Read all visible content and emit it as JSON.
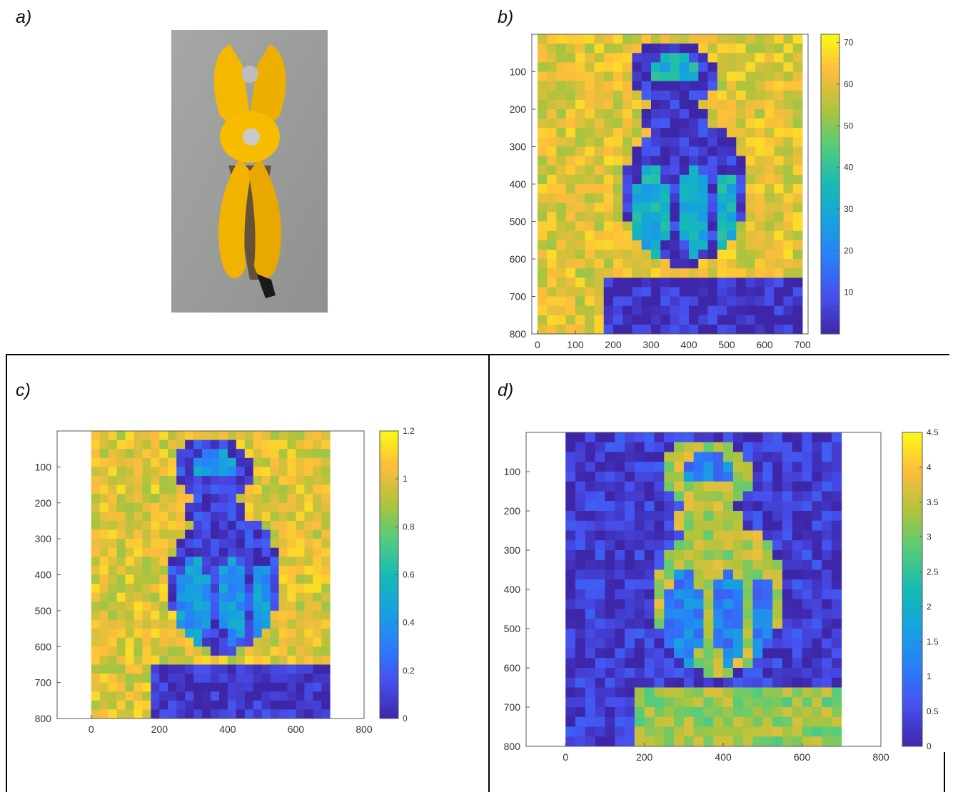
{
  "figure": {
    "panels": [
      {
        "id": "a",
        "label": "a)"
      },
      {
        "id": "b",
        "label": "b)"
      },
      {
        "id": "c",
        "label": "c)"
      },
      {
        "id": "d",
        "label": "d)"
      }
    ],
    "photo_icon": "yellow-pliers-photo"
  },
  "chart_data": [
    {
      "panel": "b",
      "type": "heatmap",
      "title": "",
      "xlabel": "",
      "ylabel": "",
      "xlim": [
        -15,
        715
      ],
      "ylim": [
        800,
        0
      ],
      "xticks": [
        0,
        100,
        200,
        300,
        400,
        500,
        600,
        700
      ],
      "xtick_labels": [
        "0",
        "100",
        "200",
        "300",
        "400",
        "500",
        "600",
        "700"
      ],
      "yticks": [
        100,
        200,
        300,
        400,
        500,
        600,
        700,
        800
      ],
      "ytick_labels": [
        "100",
        "200",
        "300",
        "400",
        "500",
        "600",
        "700",
        "800"
      ],
      "data_extent": {
        "x": [
          0,
          700
        ],
        "y": [
          0,
          800
        ]
      },
      "colorbar": {
        "min": 0,
        "max": 72,
        "ticks": [
          10,
          20,
          30,
          40,
          50,
          60,
          70
        ],
        "tick_labels": [
          "10",
          "20",
          "30",
          "40",
          "50",
          "60",
          "70"
        ]
      },
      "colormap": "parula",
      "pattern": {
        "background": 60,
        "object": 4,
        "inner": 32,
        "base": 3
      }
    },
    {
      "panel": "c",
      "type": "heatmap",
      "title": "",
      "xlabel": "",
      "ylabel": "",
      "xlim": [
        -100,
        800
      ],
      "ylim": [
        800,
        0
      ],
      "xticks": [
        0,
        200,
        400,
        600,
        800
      ],
      "xtick_labels": [
        "0",
        "200",
        "400",
        "600",
        "800"
      ],
      "yticks": [
        100,
        200,
        300,
        400,
        500,
        600,
        700,
        800
      ],
      "ytick_labels": [
        "100",
        "200",
        "300",
        "400",
        "500",
        "600",
        "700",
        "800"
      ],
      "data_extent": {
        "x": [
          0,
          700
        ],
        "y": [
          0,
          800
        ]
      },
      "colorbar": {
        "min": 0,
        "max": 1.2,
        "ticks": [
          0,
          0.2,
          0.4,
          0.6,
          0.8,
          1,
          1.2
        ],
        "tick_labels": [
          "0",
          "0.2",
          "0.4",
          "0.6",
          "0.8",
          "1",
          "1.2"
        ]
      },
      "colormap": "parula",
      "pattern": {
        "background": 1.0,
        "object": 0.1,
        "inner": 0.4,
        "base": 0.05
      }
    },
    {
      "panel": "d",
      "type": "heatmap",
      "title": "",
      "xlabel": "",
      "ylabel": "",
      "xlim": [
        -100,
        800
      ],
      "ylim": [
        800,
        0
      ],
      "xticks": [
        0,
        200,
        400,
        600,
        800
      ],
      "xtick_labels": [
        "0",
        "200",
        "400",
        "600",
        "800"
      ],
      "yticks": [
        100,
        200,
        300,
        400,
        500,
        600,
        700,
        800
      ],
      "ytick_labels": [
        "100",
        "200",
        "300",
        "400",
        "500",
        "600",
        "700",
        "800"
      ],
      "data_extent": {
        "x": [
          0,
          700
        ],
        "y": [
          0,
          800
        ]
      },
      "colorbar": {
        "min": 0,
        "max": 4.5,
        "ticks": [
          0,
          0.5,
          1,
          1.5,
          2,
          2.5,
          3,
          3.5,
          4,
          4.5
        ],
        "tick_labels": [
          "0",
          "0.5",
          "1",
          "1.5",
          "2",
          "2.5",
          "3",
          "3.5",
          "4",
          "4.5"
        ]
      },
      "colormap": "parula",
      "pattern": {
        "background": 0.3,
        "object": 3.4,
        "inner": 1.2,
        "base": 3.2
      }
    }
  ]
}
